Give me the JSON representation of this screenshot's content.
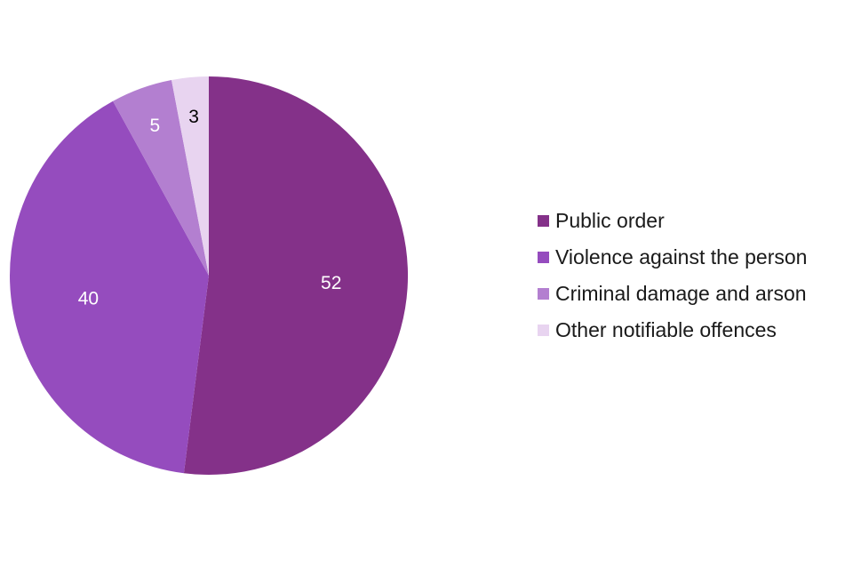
{
  "chart_data": {
    "type": "pie",
    "categories": [
      "Public order",
      "Violence against the person",
      "Criminal damage and arson",
      "Other notifiable offences"
    ],
    "values": [
      52,
      40,
      5,
      3
    ],
    "data_labels": [
      "52",
      "40",
      "5",
      "3"
    ],
    "colors": [
      "#843189",
      "#954cbe",
      "#b37fd0",
      "#e8d4f0"
    ],
    "label_colors": [
      "#ffffff",
      "#ffffff",
      "#ffffff",
      "#000000"
    ],
    "start_angle": "12 o'clock",
    "direction": "clockwise",
    "legend_position": "right",
    "title": ""
  }
}
